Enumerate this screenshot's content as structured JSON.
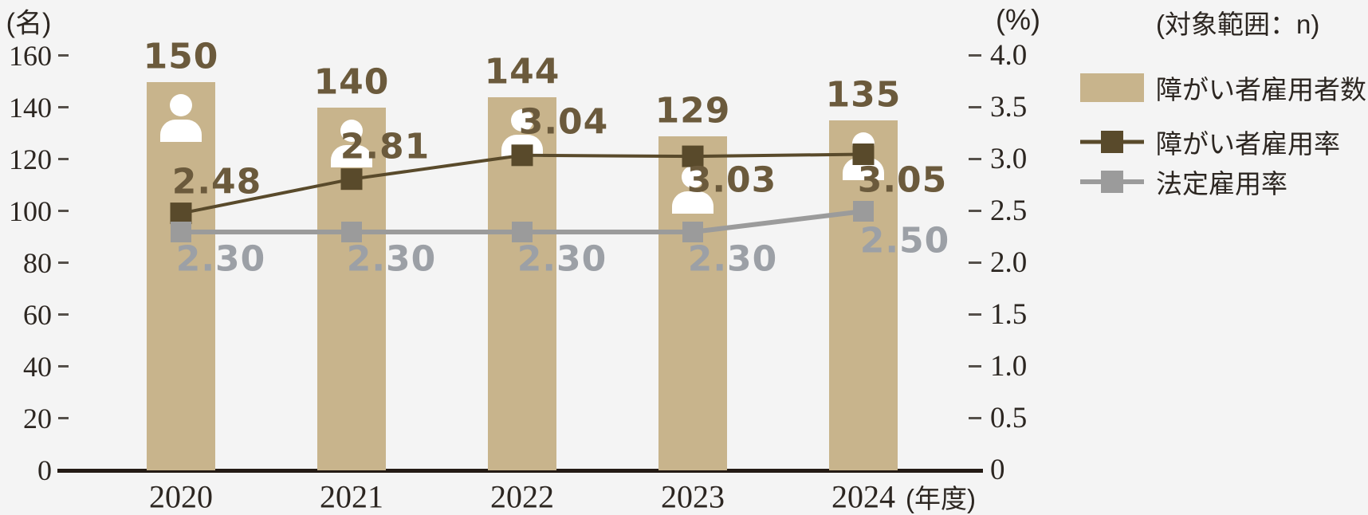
{
  "scope_note": "(対象範囲：n)",
  "left_axis": {
    "title": "(名)",
    "ticks": [
      "160",
      "140",
      "120",
      "100",
      "80",
      "60",
      "40",
      "20",
      "0"
    ]
  },
  "right_axis": {
    "title": "(%)",
    "ticks": [
      "4.0",
      "3.5",
      "3.0",
      "2.5",
      "2.0",
      "1.5",
      "1.0",
      "0.5",
      "0"
    ]
  },
  "x_axis": {
    "categories": [
      "2020",
      "2021",
      "2022",
      "2023",
      "2024"
    ],
    "unit_label": "(年度)"
  },
  "legend": {
    "items": [
      {
        "label": "障がい者雇用者数",
        "type": "bar",
        "color": "#C8B48C"
      },
      {
        "label": "障がい者雇用率",
        "type": "line",
        "color": "#594A2B"
      },
      {
        "label": "法定雇用率",
        "type": "line",
        "color": "#9B9B9B"
      }
    ]
  },
  "chart_data": {
    "type": "bar+line",
    "categories": [
      "2020",
      "2021",
      "2022",
      "2023",
      "2024"
    ],
    "series": [
      {
        "name": "障がい者雇用者数",
        "type": "bar",
        "axis": "left",
        "unit": "名",
        "values": [
          150,
          140,
          144,
          129,
          135
        ],
        "value_labels": [
          "150",
          "140",
          "144",
          "129",
          "135"
        ],
        "color": "#C8B48C"
      },
      {
        "name": "障がい者雇用率",
        "type": "line",
        "axis": "right",
        "unit": "%",
        "values": [
          2.48,
          2.81,
          3.04,
          3.03,
          3.05
        ],
        "value_labels": [
          "2.48",
          "2.81",
          "3.04",
          "3.03",
          "3.05"
        ],
        "color": "#594A2B"
      },
      {
        "name": "法定雇用率",
        "type": "line",
        "axis": "right",
        "unit": "%",
        "values": [
          2.3,
          2.3,
          2.3,
          2.3,
          2.5
        ],
        "value_labels": [
          "2.30",
          "2.30",
          "2.30",
          "2.30",
          "2.50"
        ],
        "color": "#9B9B9B"
      }
    ],
    "ylim_left": [
      0,
      160
    ],
    "ylim_right": [
      0,
      4.0
    ],
    "left_tick_step": 20,
    "right_tick_step": 0.5,
    "grid": false,
    "legend_position": "right"
  },
  "colors": {
    "background": "#F4F4F4",
    "bar": "#C8B48C",
    "bar_value_label": "#6B5A3C",
    "employment_rate_line": "#594A2B",
    "legal_rate_line": "#9B9B9B",
    "legal_rate_label": "#9CA0A6",
    "axis_text": "#2C2621",
    "baseline": "#241B15",
    "person_icon": "#FFFFFF"
  }
}
